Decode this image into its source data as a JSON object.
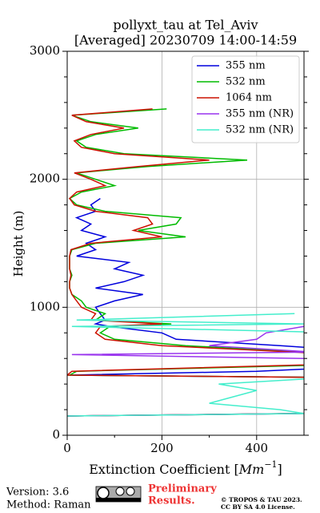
{
  "chart_data": {
    "type": "line",
    "title": [
      "pollyxt_tau at Tel_Aviv",
      "[Averaged] 20230709 14:00-14:59"
    ],
    "xlabel": [
      "Extinction Coefficient [",
      "Mm",
      "−1",
      "]"
    ],
    "ylabel": "Height (m)",
    "xlim": [
      0,
      500
    ],
    "xticks": [
      0,
      200,
      400
    ],
    "xminorticks": [
      100,
      300
    ],
    "ylim": [
      0,
      3000
    ],
    "yticks": [
      0,
      1000,
      2000,
      3000
    ],
    "yminorticks": [
      200,
      400,
      600,
      800,
      1200,
      1400,
      1600,
      1800,
      2200,
      2400,
      2600,
      2800
    ],
    "grid": true,
    "legend": "upper right",
    "y": [
      150,
      170,
      200,
      250,
      300,
      350,
      400,
      450,
      470,
      500,
      550,
      600,
      630,
      650,
      700,
      750,
      800,
      850,
      870,
      900,
      950,
      1000,
      1050,
      1100,
      1150,
      1200,
      1250,
      1300,
      1350,
      1400,
      1450,
      1500,
      1550,
      1600,
      1650,
      1700,
      1750,
      1800,
      1850,
      1900,
      1950,
      2000,
      2050,
      2100,
      2150,
      2200,
      2250,
      2300,
      2350,
      2400,
      2450,
      2500,
      2550
    ],
    "series": [
      {
        "name": "355 nm",
        "color": "#0000dd",
        "values": [
          0,
          490,
          700,
          800,
          800,
          750,
          700,
          600,
          5,
          400,
          700,
          800,
          700,
          650,
          450,
          230,
          200,
          90,
          60,
          80,
          70,
          60,
          100,
          160,
          60,
          120,
          160,
          100,
          130,
          20,
          60,
          40,
          80,
          30,
          50,
          20,
          60,
          50,
          70,
          null,
          null,
          null,
          null,
          null,
          null,
          null,
          null,
          null,
          null,
          null,
          null,
          null,
          null
        ]
      },
      {
        "name": "532 nm",
        "color": "#00bb00",
        "values": [
          0,
          500,
          700,
          750,
          750,
          700,
          650,
          600,
          5,
          20,
          550,
          700,
          600,
          500,
          250,
          100,
          70,
          90,
          220,
          60,
          80,
          40,
          30,
          10,
          5,
          5,
          10,
          5,
          5,
          5,
          10,
          60,
          250,
          150,
          230,
          240,
          80,
          20,
          5,
          30,
          100,
          60,
          20,
          170,
          380,
          120,
          40,
          20,
          60,
          150,
          50,
          10,
          210
        ]
      },
      {
        "name": "1064 nm",
        "color": "#cc1100",
        "values": [
          0,
          480,
          690,
          740,
          740,
          690,
          640,
          590,
          0,
          10,
          500,
          650,
          560,
          480,
          200,
          80,
          60,
          70,
          200,
          50,
          60,
          30,
          20,
          10,
          5,
          5,
          8,
          5,
          5,
          5,
          8,
          50,
          200,
          140,
          180,
          170,
          60,
          15,
          5,
          20,
          80,
          50,
          15,
          150,
          300,
          100,
          30,
          15,
          50,
          120,
          40,
          10,
          180
        ]
      },
      {
        "name": "355 nm (NR)",
        "color": "#9933ee",
        "values": [
          0,
          500,
          700,
          650,
          600,
          700,
          650,
          600,
          600,
          600,
          650,
          500,
          10,
          520,
          300,
          400,
          420,
          500,
          600,
          550,
          500,
          null,
          null,
          null,
          null,
          null,
          null,
          null,
          null,
          null,
          null,
          null,
          null,
          null,
          null,
          null,
          null,
          null,
          null,
          null,
          null,
          null,
          null,
          null,
          null,
          null,
          null,
          null,
          null,
          null,
          null,
          null,
          null
        ]
      },
      {
        "name": "532 nm (NR)",
        "color": "#44eecc",
        "values": [
          0,
          500,
          450,
          300,
          350,
          400,
          320,
          550,
          600,
          600,
          600,
          600,
          600,
          600,
          600,
          600,
          600,
          10,
          500,
          20,
          480,
          null,
          null,
          null,
          null,
          null,
          null,
          null,
          null,
          null,
          null,
          null,
          null,
          null,
          null,
          null,
          null,
          null,
          null,
          null,
          null,
          null,
          null,
          null,
          null,
          null,
          null,
          null,
          null,
          null,
          null,
          null,
          null
        ]
      }
    ]
  },
  "footer": {
    "version": "Version: 3.6",
    "method": "Method: Raman",
    "status": [
      "Preliminary",
      "Results."
    ],
    "copyright": [
      "© TROPOS & TAU 2023.",
      "CC BY SA 4.0 License."
    ]
  }
}
